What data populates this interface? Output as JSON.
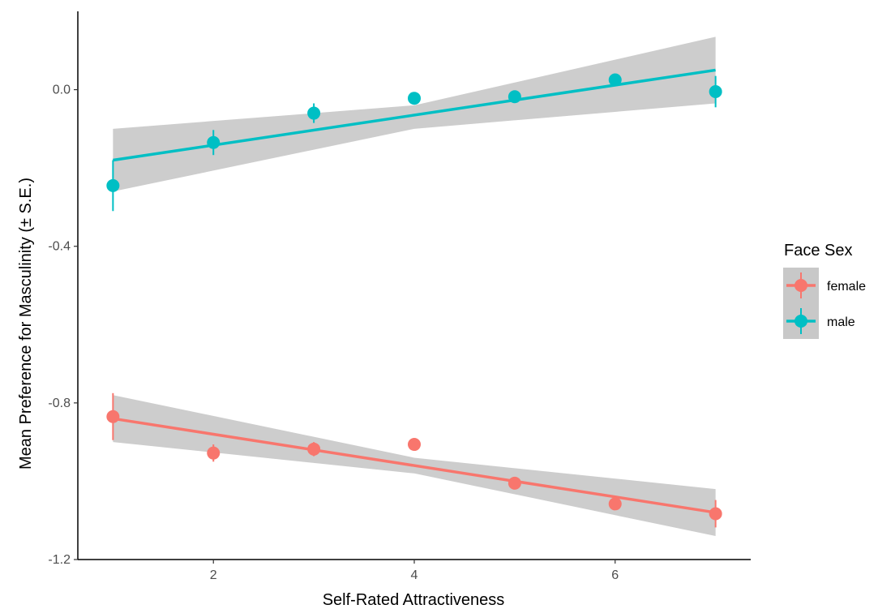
{
  "chart_data": {
    "type": "scatter",
    "xlabel": "Self-Rated Attractiveness",
    "ylabel": "Mean Preference for Masculinity (± S.E.)",
    "xlim": [
      0.65,
      7.35
    ],
    "ylim": [
      -1.2,
      0.2
    ],
    "x_ticks": [
      2,
      4,
      6
    ],
    "x_tick_labels": [
      "2",
      "4",
      "6"
    ],
    "y_ticks": [
      -1.2,
      -0.8,
      -0.4,
      0.0
    ],
    "y_tick_labels": [
      "-1.2",
      "-0.8",
      "-0.4",
      "0.0"
    ],
    "grid": false,
    "legend": {
      "title": "Face Sex",
      "position": "right"
    },
    "series": [
      {
        "name": "female",
        "color": "#F8766D",
        "x": [
          1,
          2,
          3,
          4,
          5,
          6,
          7
        ],
        "y": [
          -0.835,
          -0.928,
          -0.918,
          -0.906,
          -1.005,
          -1.058,
          -1.083
        ],
        "se": [
          0.06,
          0.022,
          0.018,
          0.0,
          0.008,
          0.008,
          0.035
        ],
        "fit": {
          "x": [
            1,
            7
          ],
          "y": [
            -0.84,
            -1.08
          ]
        },
        "ci_lower": {
          "x": [
            1,
            4,
            7
          ],
          "y": [
            -0.9,
            -0.98,
            -1.14
          ]
        },
        "ci_upper": {
          "x": [
            1,
            4,
            7
          ],
          "y": [
            -0.78,
            -0.94,
            -1.02
          ]
        }
      },
      {
        "name": "male",
        "color": "#00BFC4",
        "x": [
          1,
          2,
          3,
          4,
          5,
          6,
          7
        ],
        "y": [
          -0.245,
          -0.135,
          -0.06,
          -0.022,
          -0.018,
          0.025,
          -0.005
        ],
        "se": [
          0.065,
          0.032,
          0.025,
          0.0,
          0.008,
          0.0,
          0.04
        ],
        "fit": {
          "x": [
            1,
            7
          ],
          "y": [
            -0.18,
            0.05
          ]
        },
        "ci_lower": {
          "x": [
            1,
            4,
            7
          ],
          "y": [
            -0.26,
            -0.1,
            -0.035
          ]
        },
        "ci_upper": {
          "x": [
            1,
            4,
            7
          ],
          "y": [
            -0.1,
            -0.04,
            0.135
          ]
        }
      }
    ],
    "ci_color": "#c8c8c8"
  }
}
